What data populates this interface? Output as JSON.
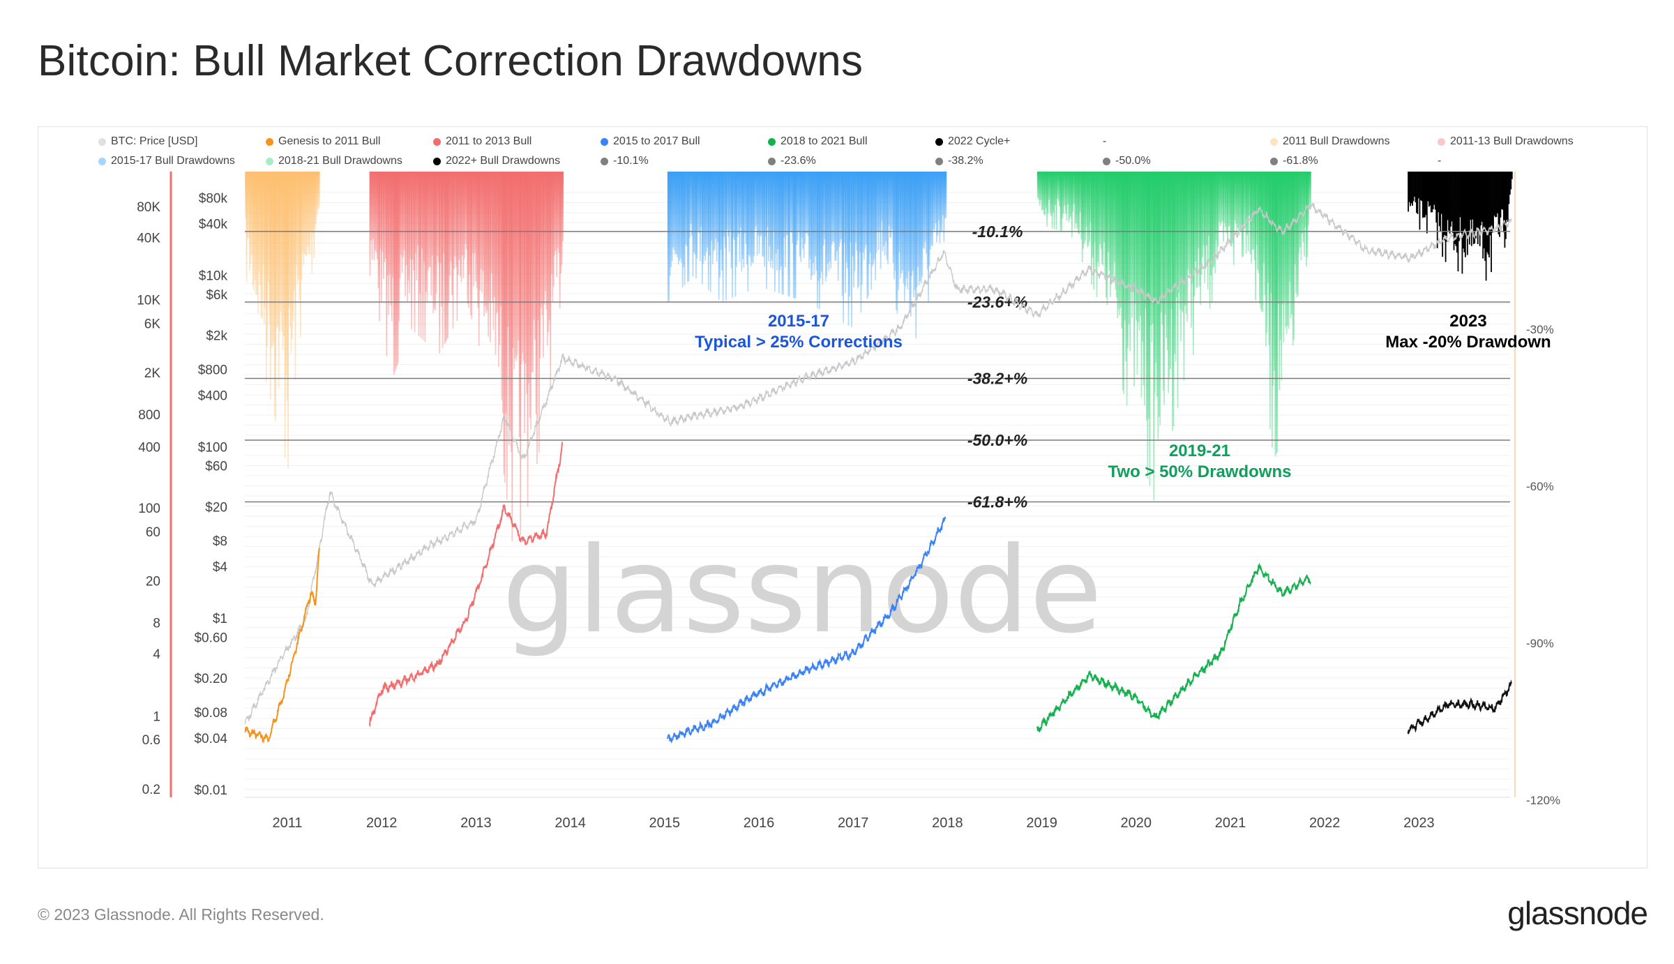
{
  "title": "Bitcoin: Bull Market Correction Drawdowns",
  "footer": "© 2023 Glassnode. All Rights Reserved.",
  "logo": "glassnode",
  "watermark": "glassnode",
  "legend": [
    {
      "label": "BTC: Price [USD]",
      "color": "#e0e0e0"
    },
    {
      "label": "Genesis to 2011 Bull",
      "color": "#f7931a"
    },
    {
      "label": "2011 to 2013 Bull",
      "color": "#f26d6d"
    },
    {
      "label": "2015 to 2017 Bull",
      "color": "#3b82f6"
    },
    {
      "label": "2018 to 2021 Bull",
      "color": "#16b14f"
    },
    {
      "label": "2022 Cycle+",
      "color": "#000000"
    },
    {
      "label": "-",
      "color": ""
    },
    {
      "label": "2011 Bull Drawdowns",
      "color": "#fde3c0"
    },
    {
      "label": "2011-13 Bull Drawdowns",
      "color": "#fbc8c8"
    },
    {
      "label": "2015-17 Bull Drawdowns",
      "color": "#a9d4fb"
    },
    {
      "label": "2018-21 Bull Drawdowns",
      "color": "#a8ecc4"
    },
    {
      "label": "2022+ Bull Drawdowns",
      "color": "#000000"
    },
    {
      "label": "-10.1%",
      "color": "#808080"
    },
    {
      "label": "-23.6%",
      "color": "#808080"
    },
    {
      "label": "-38.2%",
      "color": "#808080"
    },
    {
      "label": "-50.0%",
      "color": "#808080"
    },
    {
      "label": "-61.8%",
      "color": "#808080"
    },
    {
      "label": "-",
      "color": ""
    }
  ],
  "chart_data": {
    "type": "line",
    "title": "Bitcoin: Bull Market Correction Drawdowns",
    "x_ticks": [
      "2011",
      "2012",
      "2013",
      "2014",
      "2015",
      "2016",
      "2017",
      "2018",
      "2019",
      "2020",
      "2021",
      "2022",
      "2023"
    ],
    "xlim": [
      2010.55,
      2024.0
    ],
    "y_left_outer_ticks": [
      "80K",
      "40K",
      "10K",
      "6K",
      "2K",
      "800",
      "400",
      "100",
      "60",
      "20",
      "8",
      "4",
      "1",
      "0.6",
      "0.2"
    ],
    "y_left_price_ticks": [
      "$80k",
      "$40k",
      "$10k",
      "$6k",
      "$2k",
      "$800",
      "$400",
      "$100",
      "$60",
      "$20",
      "$8",
      "$4",
      "$1",
      "$0.60",
      "$0.20",
      "$0.08",
      "$0.04",
      "$0.01"
    ],
    "y_left_price_values": [
      80000,
      40000,
      10000,
      6000,
      2000,
      800,
      400,
      100,
      60,
      20,
      8,
      4,
      1,
      0.6,
      0.2,
      0.08,
      0.04,
      0.01
    ],
    "ylim_price": [
      0.01,
      80000
    ],
    "y_right_ticks": [
      "-30%",
      "-60%",
      "-90%",
      "-120%"
    ],
    "y_right_values": [
      -30,
      -60,
      -90,
      -120
    ],
    "ylim_drawdown": [
      -120,
      0
    ],
    "fib_levels": [
      {
        "label": "-10.1%",
        "value": -10.1
      },
      {
        "label": "-23.6+%",
        "value": -23.6
      },
      {
        "label": "-38.2+%",
        "value": -38.2
      },
      {
        "label": "-50.0+%",
        "value": -50.0
      },
      {
        "label": "-61.8+%",
        "value": -61.8
      }
    ],
    "price_series": [
      {
        "name": "BTC: Price [USD]",
        "color": "#c8c8c8",
        "points": [
          [
            2010.55,
            0.06
          ],
          [
            2010.9,
            0.3
          ],
          [
            2011.2,
            1
          ],
          [
            2011.45,
            30
          ],
          [
            2011.9,
            2.5
          ],
          [
            2012.5,
            7
          ],
          [
            2013.0,
            14
          ],
          [
            2013.3,
            230
          ],
          [
            2013.5,
            70
          ],
          [
            2013.92,
            1100
          ],
          [
            2014.5,
            600
          ],
          [
            2015.05,
            200
          ],
          [
            2015.8,
            300
          ],
          [
            2016.5,
            650
          ],
          [
            2017.0,
            1000
          ],
          [
            2017.5,
            2500
          ],
          [
            2017.96,
            19000
          ],
          [
            2018.1,
            7000
          ],
          [
            2018.5,
            7000
          ],
          [
            2018.95,
            3500
          ],
          [
            2019.5,
            12000
          ],
          [
            2020.0,
            7000
          ],
          [
            2020.2,
            5000
          ],
          [
            2020.8,
            15000
          ],
          [
            2021.3,
            60000
          ],
          [
            2021.55,
            32000
          ],
          [
            2021.85,
            67000
          ],
          [
            2022.45,
            20000
          ],
          [
            2022.9,
            16000
          ],
          [
            2023.3,
            28000
          ],
          [
            2023.8,
            35000
          ],
          [
            2023.98,
            43000
          ]
        ]
      },
      {
        "name": "Genesis to 2011 Bull",
        "color": "#f7931a",
        "points": [
          [
            2010.55,
            0.05
          ],
          [
            2010.8,
            0.04
          ],
          [
            2010.95,
            0.12
          ],
          [
            2011.05,
            0.3
          ],
          [
            2011.15,
            0.8
          ],
          [
            2011.25,
            2
          ],
          [
            2011.3,
            1.5
          ],
          [
            2011.34,
            7
          ]
        ]
      },
      {
        "name": "2011 to 2013 Bull",
        "color": "#f26d6d",
        "points": [
          [
            2011.87,
            0.06
          ],
          [
            2012.0,
            0.15
          ],
          [
            2012.3,
            0.2
          ],
          [
            2012.6,
            0.3
          ],
          [
            2012.9,
            1
          ],
          [
            2013.1,
            4
          ],
          [
            2013.3,
            20
          ],
          [
            2013.5,
            8
          ],
          [
            2013.75,
            10
          ],
          [
            2013.92,
            110
          ]
        ]
      },
      {
        "name": "2015 to 2017 Bull",
        "color": "#3b82f6",
        "points": [
          [
            2015.03,
            0.04
          ],
          [
            2015.5,
            0.06
          ],
          [
            2015.9,
            0.12
          ],
          [
            2016.5,
            0.25
          ],
          [
            2017.0,
            0.4
          ],
          [
            2017.4,
            1.2
          ],
          [
            2017.7,
            4
          ],
          [
            2017.98,
            15
          ]
        ]
      },
      {
        "name": "2018 to 2021 Bull",
        "color": "#16b14f",
        "points": [
          [
            2018.95,
            0.05
          ],
          [
            2019.5,
            0.22
          ],
          [
            2020.0,
            0.12
          ],
          [
            2020.2,
            0.07
          ],
          [
            2020.6,
            0.2
          ],
          [
            2020.9,
            0.4
          ],
          [
            2021.1,
            1.5
          ],
          [
            2021.3,
            4
          ],
          [
            2021.55,
            2
          ],
          [
            2021.85,
            3
          ]
        ]
      },
      {
        "name": "2022 Cycle+",
        "color": "#111111",
        "points": [
          [
            2022.88,
            0.05
          ],
          [
            2023.1,
            0.07
          ],
          [
            2023.3,
            0.1
          ],
          [
            2023.6,
            0.1
          ],
          [
            2023.8,
            0.09
          ],
          [
            2023.98,
            0.17
          ]
        ]
      }
    ],
    "drawdown_series": [
      {
        "name": "2011 Bull Drawdowns",
        "color": "#fdbf6f",
        "points": [
          [
            2010.55,
            -20
          ],
          [
            2010.7,
            -35
          ],
          [
            2010.9,
            -50
          ],
          [
            2011.0,
            -57
          ],
          [
            2011.1,
            -35
          ],
          [
            2011.25,
            -20
          ],
          [
            2011.34,
            -8
          ]
        ]
      },
      {
        "name": "2011-13 Bull Drawdowns",
        "color": "#f26d6d",
        "points": [
          [
            2011.87,
            -20
          ],
          [
            2012.1,
            -40
          ],
          [
            2012.3,
            -30
          ],
          [
            2012.6,
            -35
          ],
          [
            2012.9,
            -25
          ],
          [
            2013.2,
            -45
          ],
          [
            2013.4,
            -74
          ],
          [
            2013.6,
            -60
          ],
          [
            2013.8,
            -40
          ],
          [
            2013.92,
            -20
          ]
        ]
      },
      {
        "name": "2015-17 Bull Drawdowns",
        "color": "#3b9ff5",
        "points": [
          [
            2015.03,
            -25
          ],
          [
            2015.3,
            -20
          ],
          [
            2015.6,
            -25
          ],
          [
            2016.0,
            -22
          ],
          [
            2016.5,
            -25
          ],
          [
            2017.0,
            -30
          ],
          [
            2017.3,
            -18
          ],
          [
            2017.6,
            -35
          ],
          [
            2017.98,
            -15
          ]
        ]
      },
      {
        "name": "2018-21 Bull Drawdowns",
        "color": "#22cc6a",
        "points": [
          [
            2018.95,
            -10
          ],
          [
            2019.3,
            -12
          ],
          [
            2019.6,
            -25
          ],
          [
            2019.9,
            -45
          ],
          [
            2020.2,
            -64
          ],
          [
            2020.5,
            -40
          ],
          [
            2020.9,
            -20
          ],
          [
            2021.2,
            -15
          ],
          [
            2021.45,
            -55
          ],
          [
            2021.6,
            -50
          ],
          [
            2021.85,
            -10
          ]
        ]
      },
      {
        "name": "2022+ Bull Drawdowns",
        "color": "#000000",
        "points": [
          [
            2022.88,
            -10
          ],
          [
            2023.1,
            -12
          ],
          [
            2023.3,
            -18
          ],
          [
            2023.5,
            -20
          ],
          [
            2023.7,
            -21
          ],
          [
            2023.9,
            -15
          ],
          [
            2023.98,
            -3
          ]
        ]
      }
    ],
    "annotations": [
      {
        "title": "2015-17",
        "text": "Typical > 25% Corrections",
        "color": "#1a56db"
      },
      {
        "title": "2019-21",
        "text": "Two > 50% Drawdowns",
        "color": "#0ea05a"
      },
      {
        "title": "2023",
        "text": "Max -20% Drawdown",
        "color": "#000000"
      }
    ]
  }
}
